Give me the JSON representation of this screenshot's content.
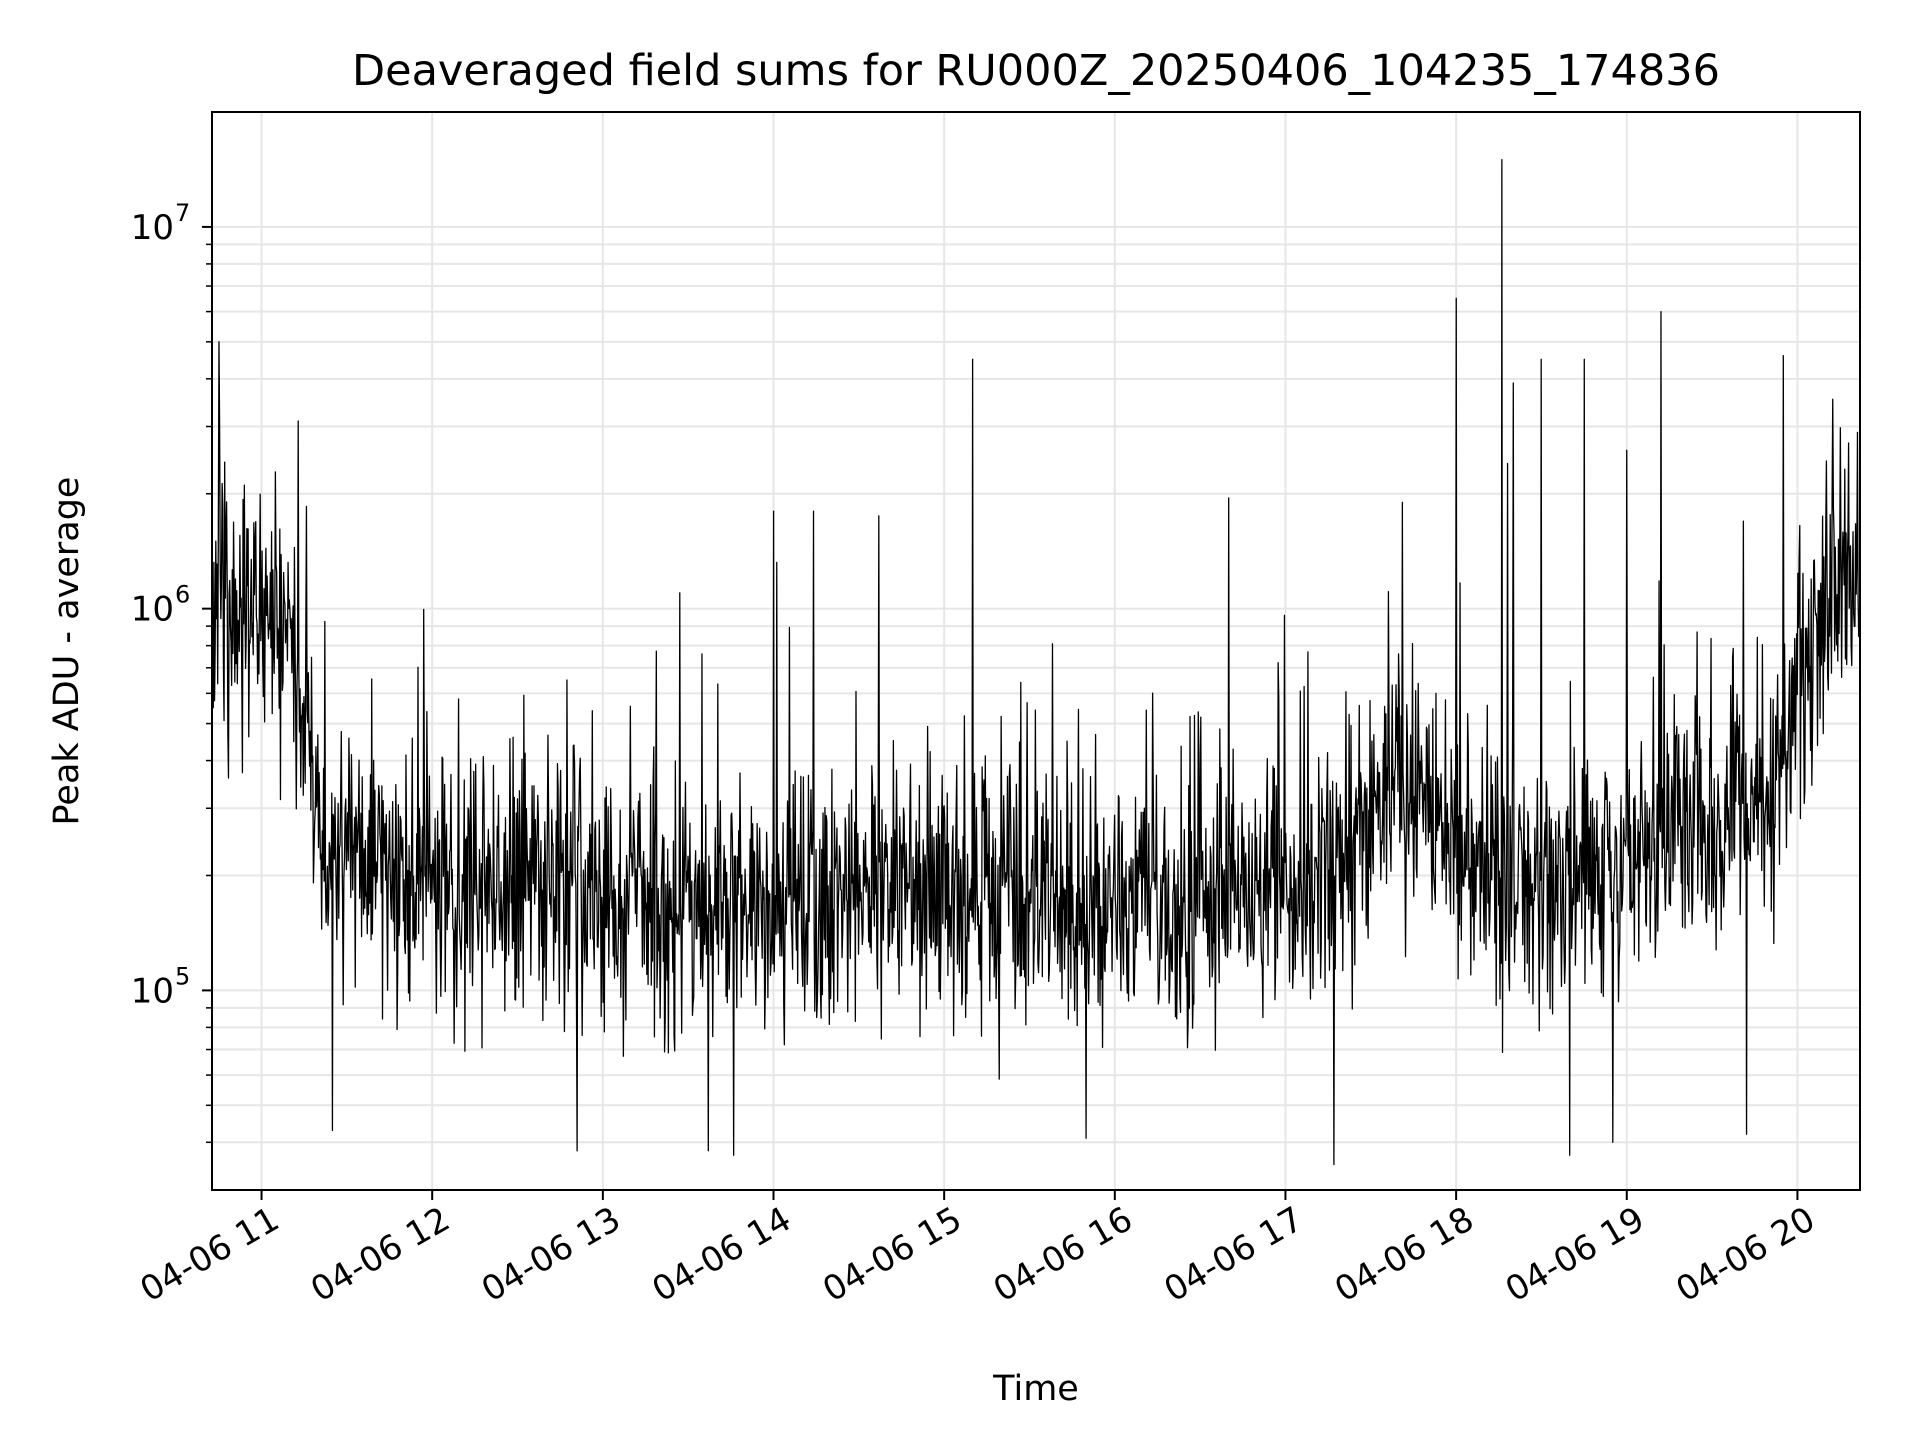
{
  "chart_data": {
    "type": "line",
    "title": "Deaveraged field sums for RU000Z_20250406_104235_174836",
    "xlabel": "Time",
    "ylabel": "Peak ADU - average",
    "yscale": "log",
    "xlim": [
      "2025-04-06 10:42:35",
      "2025-04-06 20:22:00"
    ],
    "ylim": [
      30000,
      20000000
    ],
    "grid": true,
    "line_color": "#000000",
    "x_ticks": [
      "04-06 11",
      "04-06 12",
      "04-06 13",
      "04-06 14",
      "04-06 15",
      "04-06 16",
      "04-06 17",
      "04-06 18",
      "04-06 19",
      "04-06 20"
    ],
    "y_ticks": [
      {
        "base": "10",
        "exp": "5"
      },
      {
        "base": "10",
        "exp": "6"
      },
      {
        "base": "10",
        "exp": "7"
      }
    ],
    "series": [
      {
        "sampling": "approximate baseline envelope read from the plot; fine-grained noise synthesized between these points",
        "x": [
          "2025-04-06 10:43",
          "2025-04-06 11:00",
          "2025-04-06 11:10",
          "2025-04-06 11:20",
          "2025-04-06 11:40",
          "2025-04-06 12:00",
          "2025-04-06 12:30",
          "2025-04-06 13:00",
          "2025-04-06 13:30",
          "2025-04-06 14:00",
          "2025-04-06 14:30",
          "2025-04-06 15:00",
          "2025-04-06 15:30",
          "2025-04-06 16:00",
          "2025-04-06 16:30",
          "2025-04-06 17:00",
          "2025-04-06 17:20",
          "2025-04-06 17:35",
          "2025-04-06 17:50",
          "2025-04-06 18:05",
          "2025-04-06 18:30",
          "2025-04-06 18:50",
          "2025-04-06 19:10",
          "2025-04-06 19:30",
          "2025-04-06 19:50",
          "2025-04-06 20:00",
          "2025-04-06 20:10",
          "2025-04-06 20:22"
        ],
        "y": [
          1000000,
          1000000,
          850000,
          250000,
          200000,
          190000,
          180000,
          170000,
          160000,
          165000,
          170000,
          180000,
          170000,
          160000,
          165000,
          180000,
          220000,
          350000,
          300000,
          200000,
          180000,
          190000,
          250000,
          300000,
          350000,
          600000,
          1000000,
          1200000
        ]
      }
    ],
    "spikes": {
      "x": [
        "2025-04-06 10:45",
        "2025-04-06 11:13",
        "2025-04-06 13:27",
        "2025-04-06 14:00",
        "2025-04-06 14:14",
        "2025-04-06 14:37",
        "2025-04-06 15:10",
        "2025-04-06 16:40",
        "2025-04-06 17:41",
        "2025-04-06 18:00",
        "2025-04-06 18:16",
        "2025-04-06 18:18",
        "2025-04-06 18:20",
        "2025-04-06 18:30",
        "2025-04-06 18:45",
        "2025-04-06 19:00",
        "2025-04-06 19:12",
        "2025-04-06 19:55"
      ],
      "y": [
        5000000,
        3100000,
        1100000,
        1800000,
        1800000,
        1750000,
        4500000,
        1950000,
        1900000,
        6500000,
        15000000,
        2400000,
        3900000,
        4500000,
        4500000,
        2600000,
        6000000,
        4600000
      ]
    },
    "dips": {
      "x": [
        "2025-04-06 11:25",
        "2025-04-06 12:51",
        "2025-04-06 13:37",
        "2025-04-06 13:46",
        "2025-04-06 15:50",
        "2025-04-06 17:17",
        "2025-04-06 18:40",
        "2025-04-06 18:55",
        "2025-04-06 19:42"
      ],
      "y": [
        43000,
        38000,
        38000,
        37000,
        41000,
        35000,
        37000,
        40000,
        42000
      ]
    }
  }
}
